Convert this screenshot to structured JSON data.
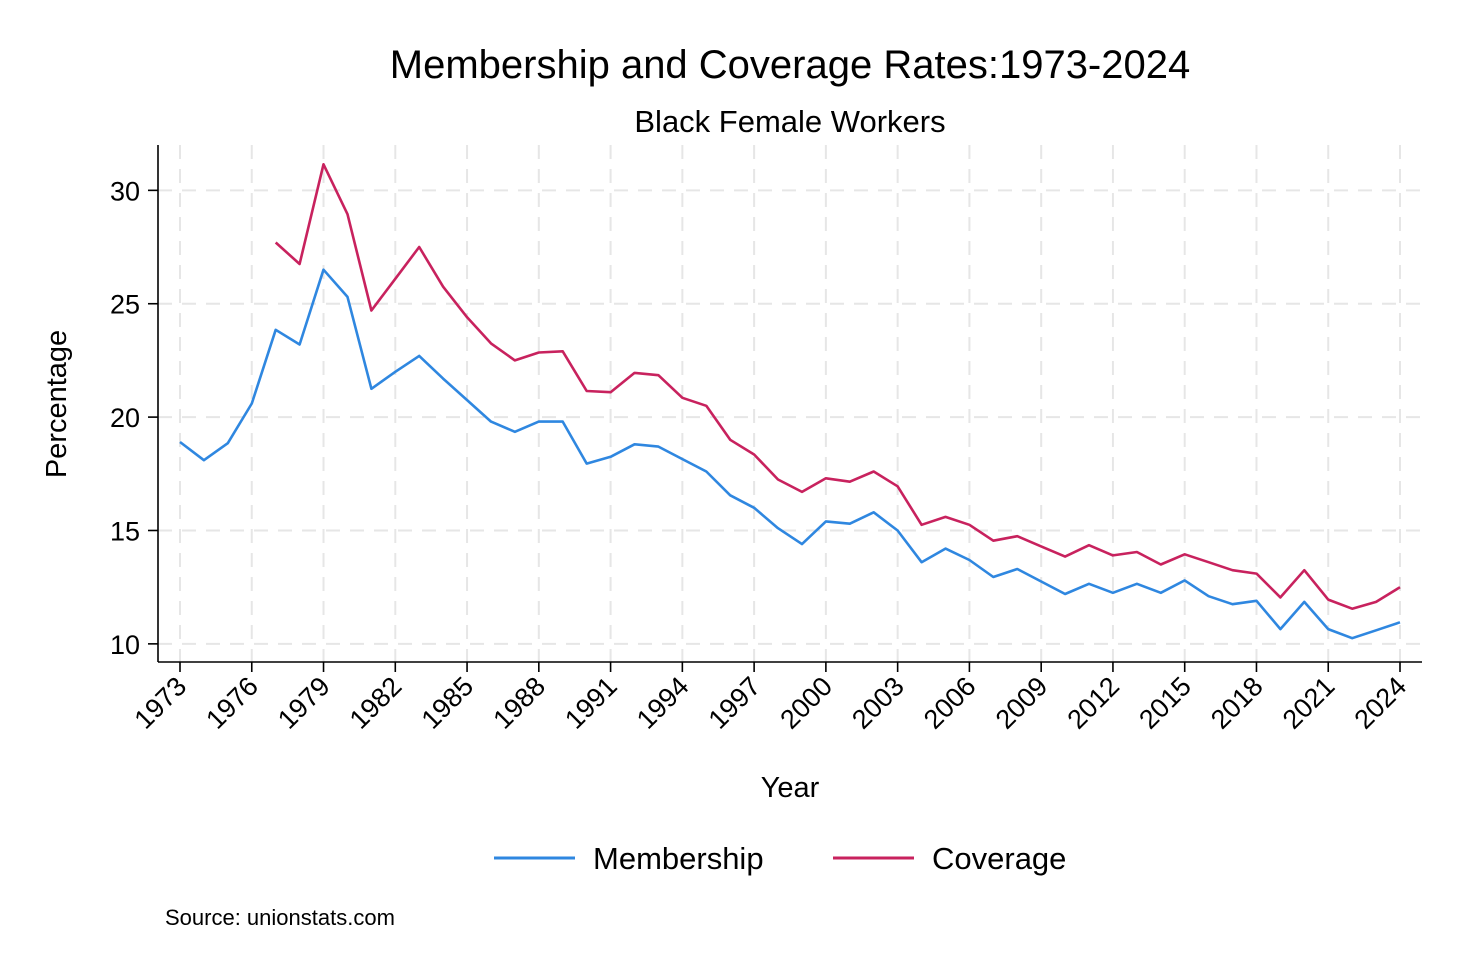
{
  "chart_data": {
    "type": "line",
    "title": "Membership and Coverage Rates:1973-2024",
    "subtitle": "Black Female Workers",
    "xlabel": "Year",
    "ylabel": "Percentage",
    "xlim": [
      1973,
      2024
    ],
    "ylim": [
      9.2,
      32
    ],
    "x_ticks": [
      1973,
      1976,
      1979,
      1982,
      1985,
      1988,
      1991,
      1994,
      1997,
      2000,
      2003,
      2006,
      2009,
      2012,
      2015,
      2018,
      2021,
      2024
    ],
    "y_ticks": [
      10,
      15,
      20,
      25,
      30
    ],
    "grid": true,
    "legend_position": "bottom",
    "note": "Source: unionstats.com",
    "series": [
      {
        "name": "Membership",
        "color": "#2f87e0",
        "x": [
          1973,
          1974,
          1975,
          1976,
          1977,
          1978,
          1979,
          1980,
          1981,
          1982,
          1983,
          1984,
          1985,
          1986,
          1987,
          1988,
          1989,
          1990,
          1991,
          1992,
          1993,
          1994,
          1995,
          1996,
          1997,
          1998,
          1999,
          2000,
          2001,
          2002,
          2003,
          2004,
          2005,
          2006,
          2007,
          2008,
          2009,
          2010,
          2011,
          2012,
          2013,
          2014,
          2015,
          2016,
          2017,
          2018,
          2019,
          2020,
          2021,
          2022,
          2023,
          2024
        ],
        "values": [
          18.9,
          18.1,
          18.85,
          20.6,
          23.85,
          23.2,
          26.5,
          25.3,
          21.25,
          22.0,
          22.7,
          21.7,
          20.75,
          19.8,
          19.35,
          19.8,
          19.8,
          17.95,
          18.25,
          18.8,
          18.7,
          18.15,
          17.6,
          16.55,
          16.0,
          15.1,
          14.4,
          15.4,
          15.3,
          15.8,
          15.0,
          13.6,
          14.2,
          13.7,
          12.95,
          13.3,
          12.75,
          12.2,
          12.65,
          12.25,
          12.65,
          12.25,
          12.8,
          12.1,
          11.75,
          11.9,
          10.65,
          11.85,
          10.65,
          10.25,
          10.6,
          10.95
        ]
      },
      {
        "name": "Coverage",
        "color": "#c8225e",
        "x": [
          1977,
          1978,
          1979,
          1980,
          1981,
          1982,
          1983,
          1984,
          1985,
          1986,
          1987,
          1988,
          1989,
          1990,
          1991,
          1992,
          1993,
          1994,
          1995,
          1996,
          1997,
          1998,
          1999,
          2000,
          2001,
          2002,
          2003,
          2004,
          2005,
          2006,
          2007,
          2008,
          2009,
          2010,
          2011,
          2012,
          2013,
          2014,
          2015,
          2016,
          2017,
          2018,
          2019,
          2020,
          2021,
          2022,
          2023,
          2024
        ],
        "values": [
          27.7,
          26.75,
          31.15,
          28.95,
          24.7,
          26.1,
          27.5,
          25.75,
          24.4,
          23.25,
          22.5,
          22.85,
          22.9,
          21.15,
          21.1,
          21.95,
          21.85,
          20.85,
          20.5,
          19.0,
          18.35,
          17.25,
          16.7,
          17.3,
          17.15,
          17.6,
          16.95,
          15.25,
          15.6,
          15.25,
          14.55,
          14.75,
          14.3,
          13.85,
          14.35,
          13.9,
          14.05,
          13.5,
          13.95,
          13.6,
          13.25,
          13.1,
          12.05,
          13.25,
          11.95,
          11.55,
          11.85,
          12.5
        ]
      }
    ]
  }
}
